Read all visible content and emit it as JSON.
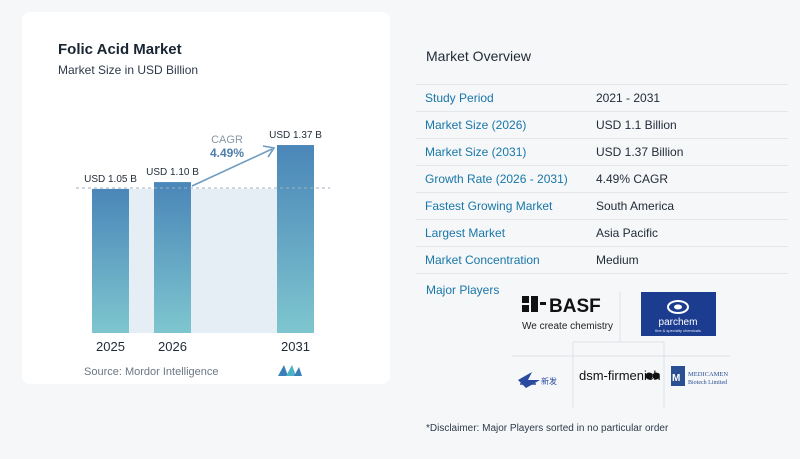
{
  "chart": {
    "title": "Folic Acid Market",
    "subtitle": "Market Size in USD Billion",
    "source": "Source:  Mordor Intelligence",
    "cagr_label": "CAGR",
    "cagr_value": "4.49%"
  },
  "chart_data": {
    "type": "bar",
    "title": "Folic Acid Market",
    "subtitle": "Market Size in USD Billion",
    "categories": [
      "2025",
      "2026",
      "2031"
    ],
    "values": [
      1.05,
      1.1,
      1.37
    ],
    "data_labels": [
      "USD 1.05 B",
      "USD 1.10 B",
      "USD 1.37 B"
    ],
    "unit": "USD Billion",
    "annotation": {
      "label": "CAGR",
      "value": "4.49%"
    },
    "grid": false,
    "colors": {
      "bar_top": "#4a86b8",
      "bar_bottom": "#7ec6cf",
      "shade": "#e6eef5",
      "arrow": "#6f9cc1"
    }
  },
  "overview": {
    "title": "Market Overview",
    "rows": [
      {
        "label": "Study Period",
        "value": "2021 - 2031"
      },
      {
        "label": "Market Size (2026)",
        "value": "USD 1.1 Billion"
      },
      {
        "label": "Market Size (2031)",
        "value": "USD 1.37 Billion"
      },
      {
        "label": "Growth Rate (2026 - 2031)",
        "value": "4.49% CAGR"
      },
      {
        "label": "Fastest Growing Market",
        "value": "South America"
      },
      {
        "label": "Largest Market",
        "value": "Asia Pacific"
      },
      {
        "label": "Market Concentration",
        "value": "Medium"
      }
    ],
    "players_label": "Major Players",
    "disclaimer": "*Disclaimer: Major Players sorted in no particular order"
  },
  "players": {
    "basf_name": "BASF",
    "basf_tagline": "We create chemistry",
    "parchem_name": "parchem",
    "parchem_tagline": "fine & specialty chemicals",
    "dsm_name": "dsm-firmenich",
    "medicamen_name": "MEDICAMEN",
    "medicamen_sub": "Biotech Limited",
    "cn_name": "新发"
  }
}
